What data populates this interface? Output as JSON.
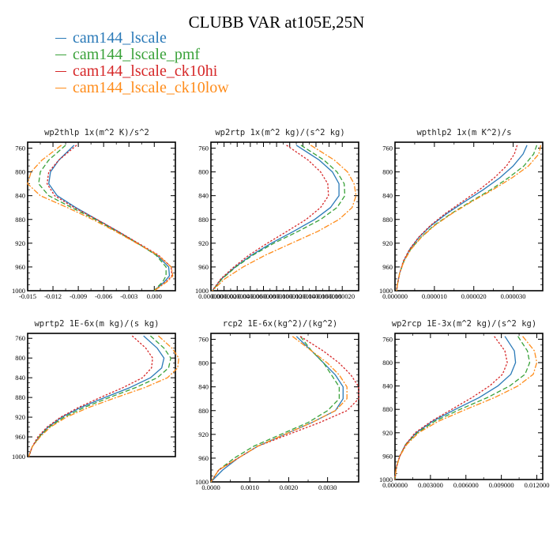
{
  "title": "CLUBB VAR at105E,25N",
  "legend": [
    {
      "name": "cam144_lscale",
      "color": "#2b7ab8"
    },
    {
      "name": "cam144_lscale_pmf",
      "color": "#3aa23a"
    },
    {
      "name": "cam144_lscale_ck10hi",
      "color": "#d62728"
    },
    {
      "name": "cam144_lscale_ck10low",
      "color": "#ff8c1a"
    }
  ],
  "chart_data": [
    {
      "type": "line",
      "title": "wp2thlp  1x(m^2 K)/s^2",
      "ylim": [
        1000,
        750
      ],
      "xlim": [
        -0.015,
        0.0025
      ],
      "yticks": [
        760,
        800,
        840,
        880,
        920,
        960,
        1000
      ],
      "xticks": [
        -0.015,
        -0.012,
        -0.009,
        -0.006,
        -0.003,
        0.0
      ],
      "xtick_labels": [
        "-0.015",
        "-0.012",
        "-0.009",
        "-0.006",
        "-0.003",
        "0.000"
      ],
      "pressure": [
        755,
        780,
        800,
        820,
        840,
        860,
        880,
        900,
        920,
        940,
        960,
        975,
        985,
        995,
        1000
      ],
      "series": [
        {
          "name": "cam144_lscale",
          "values": [
            -0.0095,
            -0.0113,
            -0.0123,
            -0.0125,
            -0.0115,
            -0.0093,
            -0.0068,
            -0.0043,
            -0.002,
            0.0003,
            0.0017,
            0.0018,
            0.0012,
            0.0004,
            0.0
          ]
        },
        {
          "name": "cam144_lscale_pmf",
          "values": [
            -0.0105,
            -0.0125,
            -0.0135,
            -0.0137,
            -0.0125,
            -0.0098,
            -0.007,
            -0.0045,
            -0.002,
            0.0002,
            0.0014,
            0.0014,
            0.001,
            0.0003,
            0.0
          ]
        },
        {
          "name": "cam144_lscale_ck10hi",
          "values": [
            -0.0092,
            -0.0113,
            -0.0125,
            -0.0127,
            -0.0118,
            -0.0095,
            -0.0068,
            -0.0043,
            -0.0019,
            0.0005,
            0.002,
            0.0021,
            0.0014,
            0.0005,
            0.0
          ]
        },
        {
          "name": "cam144_lscale_ck10low",
          "values": [
            -0.011,
            -0.0133,
            -0.0146,
            -0.015,
            -0.0135,
            -0.0103,
            -0.0073,
            -0.0046,
            -0.0021,
            0.0004,
            0.002,
            0.0022,
            0.0015,
            0.0005,
            0.0
          ]
        }
      ]
    },
    {
      "type": "line",
      "title": "wp2rtp  1x(m^2 kg)/(s^2 kg)",
      "ylim": [
        1000,
        750
      ],
      "xlim": [
        0.0,
        2.25e-05
      ],
      "yticks": [
        760,
        800,
        840,
        880,
        920,
        960,
        1000
      ],
      "xticks": [
        0.0,
        2e-06,
        4e-06,
        6e-06,
        8e-06,
        1e-05,
        1.2e-05,
        1.4e-05,
        1.6e-05,
        1.8e-05,
        2e-05
      ],
      "xtick_labels": [
        "0.000000",
        "0.000002",
        "0.000004",
        "0.000006",
        "0.000008",
        "0.000010",
        "0.000012",
        "0.000014",
        "0.000016",
        "0.000018",
        "0.000020"
      ],
      "pressure": [
        755,
        780,
        800,
        820,
        840,
        860,
        880,
        900,
        920,
        940,
        960,
        980,
        1000
      ],
      "series": [
        {
          "name": "cam144_lscale",
          "values": [
            1.3e-05,
            1.65e-05,
            1.85e-05,
            1.95e-05,
            1.95e-05,
            1.82e-05,
            1.58e-05,
            1.26e-05,
            9.2e-06,
            6.2e-06,
            3.7e-06,
            1.6e-06,
            2e-07
          ]
        },
        {
          "name": "cam144_lscale_pmf",
          "values": [
            1.37e-05,
            1.72e-05,
            1.92e-05,
            2.03e-05,
            2.04e-05,
            1.92e-05,
            1.67e-05,
            1.33e-05,
            9.6e-06,
            6.4e-06,
            3.8e-06,
            1.7e-06,
            2e-07
          ]
        },
        {
          "name": "cam144_lscale_ck10hi",
          "values": [
            1.15e-05,
            1.48e-05,
            1.67e-05,
            1.78e-05,
            1.79e-05,
            1.67e-05,
            1.45e-05,
            1.16e-05,
            8.6e-06,
            5.8e-06,
            3.5e-06,
            1.5e-06,
            2e-07
          ]
        },
        {
          "name": "cam144_lscale_ck10low",
          "values": [
            1.52e-05,
            1.88e-05,
            2.08e-05,
            2.18e-05,
            2.21e-05,
            2.15e-05,
            1.95e-05,
            1.63e-05,
            1.23e-05,
            8.3e-06,
            4.9e-06,
            2.1e-06,
            2e-07
          ]
        }
      ]
    },
    {
      "type": "line",
      "title": "wpthlp2  1x(m K^2)/s",
      "ylim": [
        1000,
        750
      ],
      "xlim": [
        0.0,
        3.75e-05
      ],
      "yticks": [
        760,
        800,
        840,
        880,
        920,
        960,
        1000
      ],
      "xticks": [
        0.0,
        1e-05,
        2e-05,
        3e-05
      ],
      "xtick_labels": [
        "0.000000",
        "0.000010",
        "0.000020",
        "0.000030"
      ],
      "pressure": [
        755,
        770,
        790,
        810,
        830,
        850,
        870,
        890,
        910,
        930,
        950,
        970,
        990,
        1000
      ],
      "series": [
        {
          "name": "cam144_lscale",
          "values": [
            3.35e-05,
            3.25e-05,
            3e-05,
            2.66e-05,
            2.24e-05,
            1.77e-05,
            1.32e-05,
            9.2e-06,
            6.1e-06,
            3.8e-06,
            2.2e-06,
            1.2e-06,
            6e-07,
            4e-07
          ]
        },
        {
          "name": "cam144_lscale_pmf",
          "values": [
            3.6e-05,
            3.52e-05,
            3.27e-05,
            2.88e-05,
            2.43e-05,
            1.92e-05,
            1.43e-05,
            9.9e-06,
            6.6e-06,
            4e-06,
            2.3e-06,
            1.2e-06,
            6e-07,
            4e-07
          ]
        },
        {
          "name": "cam144_lscale_ck10hi",
          "values": [
            3.1e-05,
            3.03e-05,
            2.83e-05,
            2.52e-05,
            2.14e-05,
            1.71e-05,
            1.28e-05,
            9e-06,
            6e-06,
            3.7e-06,
            2.1e-06,
            1.2e-06,
            6e-07,
            4e-07
          ]
        },
        {
          "name": "cam144_lscale_ck10low",
          "values": [
            3.7e-05,
            3.65e-05,
            3.39e-05,
            2.97e-05,
            2.48e-05,
            1.95e-05,
            1.45e-05,
            1.01e-05,
            6.7e-06,
            4.1e-06,
            2.3e-06,
            1.2e-06,
            6e-07,
            4e-07
          ]
        }
      ]
    },
    {
      "type": "line",
      "title": "wprtp2  1E-6x(m kg)/(s kg)",
      "ylim": [
        1000,
        750
      ],
      "xlim": [
        0.0,
        1.3e-06
      ],
      "yticks": [
        760,
        800,
        840,
        880,
        920,
        960,
        1000
      ],
      "pressure": [
        755,
        780,
        800,
        820,
        840,
        860,
        880,
        900,
        920,
        940,
        960,
        980,
        1000
      ],
      "series": [
        {
          "name": "cam144_lscale",
          "values": [
            1.02e-06,
            1.14e-06,
            1.2e-06,
            1.18e-06,
            1.08e-06,
            9e-07,
            6.8e-07,
            4.7e-07,
            3e-07,
            1.8e-07,
            1e-07,
            4e-08,
            1e-08
          ]
        },
        {
          "name": "cam144_lscale_pmf",
          "values": [
            1.08e-06,
            1.2e-06,
            1.26e-06,
            1.24e-06,
            1.14e-06,
            9.5e-07,
            7.2e-07,
            5e-07,
            3.2e-07,
            1.9e-07,
            1e-07,
            4e-08,
            1e-08
          ]
        },
        {
          "name": "cam144_lscale_ck10hi",
          "values": [
            9.2e-07,
            1.04e-06,
            1.1e-06,
            1.09e-06,
            1.01e-06,
            8.4e-07,
            6.4e-07,
            4.5e-07,
            2.9e-07,
            1.7e-07,
            9e-08,
            4e-08,
            1e-08
          ]
        },
        {
          "name": "cam144_lscale_ck10low",
          "values": [
            1.15e-06,
            1.27e-06,
            1.33e-06,
            1.32e-06,
            1.23e-06,
            1.03e-06,
            7.8e-07,
            5.4e-07,
            3.4e-07,
            2e-07,
            1.1e-07,
            4e-08,
            1e-08
          ]
        }
      ]
    },
    {
      "type": "line",
      "title": "rcp2  1E-6x(kg^2)/(kg^2)",
      "ylim": [
        1000,
        750
      ],
      "xlim": [
        0.0,
        0.0038
      ],
      "yticks": [
        760,
        800,
        840,
        880,
        920,
        960,
        1000
      ],
      "xticks": [
        0.0,
        0.001,
        0.002,
        0.003
      ],
      "xtick_labels": [
        "0.0000",
        "0.0010",
        "0.0020",
        "0.0030"
      ],
      "pressure": [
        755,
        780,
        800,
        820,
        840,
        860,
        880,
        900,
        920,
        940,
        960,
        980,
        1000
      ],
      "series": [
        {
          "name": "cam144_lscale",
          "values": [
            0.0022,
            0.0026,
            0.0029,
            0.0032,
            0.0034,
            0.0034,
            0.0032,
            0.0026,
            0.0019,
            0.0012,
            0.0007,
            0.0003,
            0.0
          ]
        },
        {
          "name": "cam144_lscale_pmf",
          "values": [
            0.0023,
            0.0026,
            0.0029,
            0.0031,
            0.0033,
            0.0033,
            0.003,
            0.0025,
            0.0018,
            0.0011,
            0.0006,
            0.0002,
            0.0
          ]
        },
        {
          "name": "cam144_lscale_ck10hi",
          "values": [
            0.0023,
            0.0029,
            0.0033,
            0.0036,
            0.0038,
            0.0038,
            0.0035,
            0.0028,
            0.002,
            0.0012,
            0.0007,
            0.0002,
            0.0
          ]
        },
        {
          "name": "cam144_lscale_ck10low",
          "values": [
            0.0021,
            0.0026,
            0.003,
            0.0033,
            0.0035,
            0.0035,
            0.0032,
            0.0026,
            0.0019,
            0.0012,
            0.0007,
            0.0002,
            0.0
          ]
        }
      ]
    },
    {
      "type": "line",
      "title": "wp2rcp  1E-3x(m^2 kg)/(s^2 kg)",
      "ylim": [
        1000,
        750
      ],
      "xlim": [
        0.0,
        0.0125
      ],
      "yticks": [
        760,
        800,
        840,
        880,
        920,
        960,
        1000
      ],
      "xticks": [
        0.0,
        0.003,
        0.006,
        0.009,
        0.012
      ],
      "xtick_labels": [
        "0.000000",
        "0.003000",
        "0.006000",
        "0.009000",
        "0.012000"
      ],
      "pressure": [
        755,
        780,
        800,
        820,
        840,
        860,
        880,
        900,
        920,
        940,
        960,
        980,
        1000
      ],
      "series": [
        {
          "name": "cam144_lscale",
          "values": [
            0.0093,
            0.0101,
            0.0102,
            0.0098,
            0.0087,
            0.0071,
            0.0051,
            0.0032,
            0.0018,
            0.0009,
            0.0004,
            0.0001,
            0.0
          ]
        },
        {
          "name": "cam144_lscale_pmf",
          "values": [
            0.0104,
            0.0112,
            0.0114,
            0.011,
            0.0097,
            0.0078,
            0.0055,
            0.0034,
            0.0019,
            0.0009,
            0.0004,
            0.0001,
            0.0
          ]
        },
        {
          "name": "cam144_lscale_ck10hi",
          "values": [
            0.0084,
            0.0093,
            0.0095,
            0.0091,
            0.008,
            0.0065,
            0.0048,
            0.0031,
            0.0017,
            0.0009,
            0.0004,
            0.0001,
            0.0
          ]
        },
        {
          "name": "cam144_lscale_ck10low",
          "values": [
            0.0108,
            0.0118,
            0.012,
            0.0117,
            0.0104,
            0.0084,
            0.006,
            0.0037,
            0.002,
            0.001,
            0.0004,
            0.0001,
            0.0
          ]
        }
      ]
    }
  ]
}
